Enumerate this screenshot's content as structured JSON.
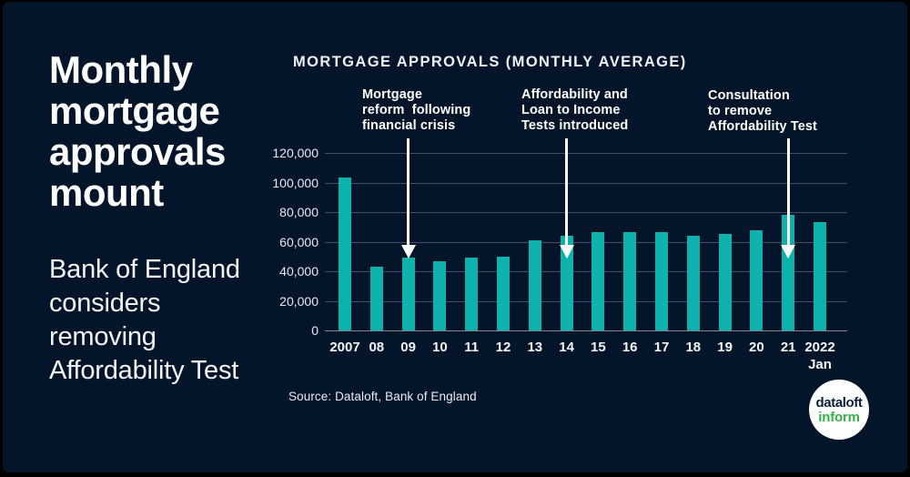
{
  "left_panel": {
    "headline": "Monthly\nmortgage\napprovals\nmount",
    "subtitle": "Bank of England\nconsiders\nremoving\nAffordability Test"
  },
  "chart_data": {
    "type": "bar",
    "title": "MORTGAGE APPROVALS (MONTHLY AVERAGE)",
    "categories": [
      "2007",
      "08",
      "09",
      "10",
      "11",
      "12",
      "13",
      "14",
      "15",
      "16",
      "17",
      "18",
      "19",
      "20",
      "21",
      "2022"
    ],
    "x_sub_label": {
      "category": "2022",
      "label": "Jan"
    },
    "values": [
      103500,
      43000,
      49000,
      47000,
      49000,
      50000,
      61000,
      64000,
      66500,
      66500,
      66500,
      64000,
      65000,
      67500,
      78000,
      73000
    ],
    "ylim": [
      0,
      120000
    ],
    "y_ticks": [
      0,
      20000,
      40000,
      60000,
      80000,
      100000,
      120000
    ],
    "y_tick_labels": [
      "0",
      "20,000",
      "40,000",
      "60,000",
      "80,000",
      "100,000",
      "120,000"
    ],
    "grid": true,
    "legend": "none",
    "annotations": [
      {
        "text": "Mortgage\nreform  following\nfinancial crisis",
        "bar_index": 2
      },
      {
        "text": "Affordability and\nLoan to Income\nTests introduced",
        "bar_index": 7
      },
      {
        "text": "Consultation\nto remove\nAffordability Test",
        "bar_index": 14
      }
    ]
  },
  "footer": {
    "source": "Source: Dataloft, Bank of England",
    "logo": {
      "line1": "dataloft",
      "line2": "inform"
    }
  },
  "colors": {
    "background": "#041529",
    "bar_teal": "#0cb2ab",
    "text_white": "#ffffff",
    "logo_green": "#35b24a",
    "logo_navy": "#0b1f3a",
    "gridline": "#434e66"
  }
}
